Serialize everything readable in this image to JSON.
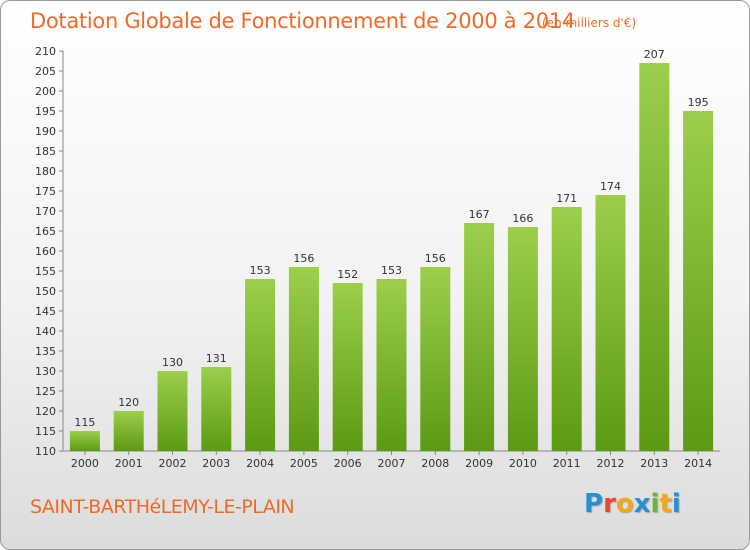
{
  "title": "Dotation Globale de Fonctionnement de 2000 à 2014",
  "subtitle": "(en milliers d'€)",
  "commune": "SAINT-BARTHéLEMY-LE-PLAIN",
  "logo": {
    "letters": [
      "P",
      "r",
      "o",
      "x",
      "i",
      "t",
      "i"
    ],
    "colors": [
      "#2a8fd1",
      "#e8492e",
      "#f2a81d",
      "#2a8fd1",
      "#6cb33f",
      "#f2a81d",
      "#2a8fd1"
    ]
  },
  "colors": {
    "accent": "#ef6a24",
    "bar_top": "#9ccf4a",
    "bar_bottom": "#5c9a12"
  },
  "chart_data": {
    "type": "bar",
    "categories": [
      "2000",
      "2001",
      "2002",
      "2003",
      "2004",
      "2005",
      "2006",
      "2007",
      "2008",
      "2009",
      "2010",
      "2011",
      "2012",
      "2013",
      "2014"
    ],
    "values": [
      115,
      120,
      130,
      131,
      153,
      156,
      152,
      153,
      156,
      167,
      166,
      171,
      174,
      207,
      195
    ],
    "ylim": [
      110,
      210
    ],
    "ytick_step": 5,
    "grid": false
  }
}
